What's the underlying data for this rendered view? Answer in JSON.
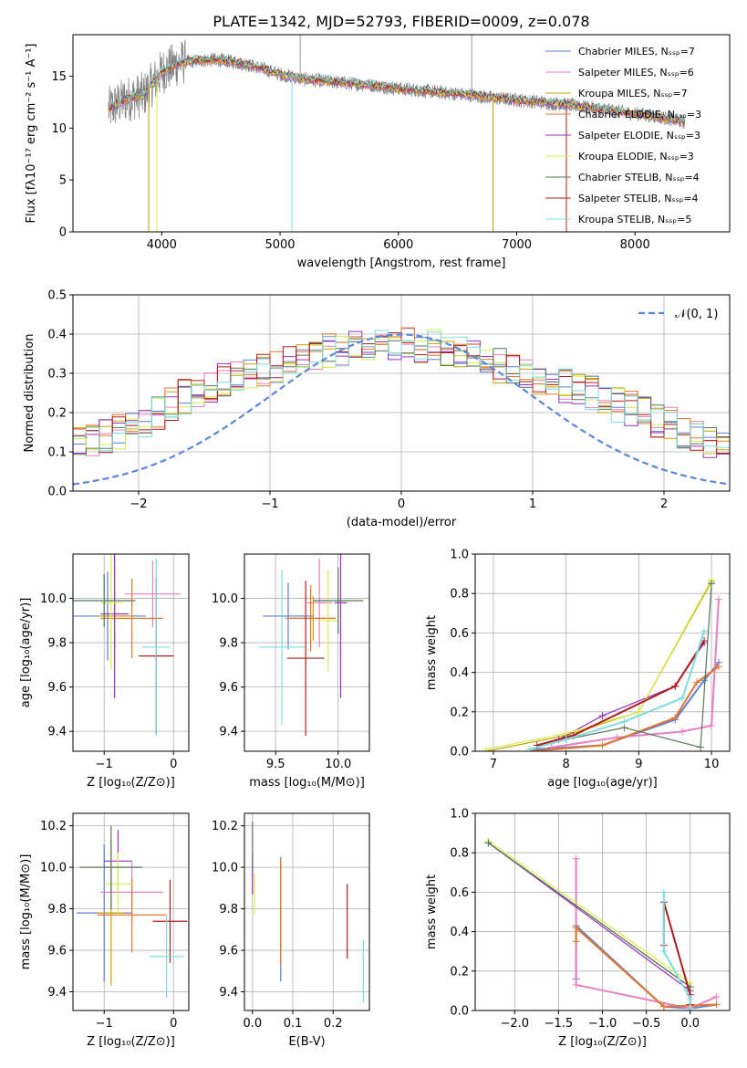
{
  "figure_title": "PLATE=1342, MJD=52793, FIBERID=0009, z=0.078",
  "series_colors": {
    "chabrier_miles": "#5b7fd6",
    "salpeter_miles": "#e87fbf",
    "kroupa_miles": "#c9a200",
    "chabrier_elodie": "#e5762b",
    "salpeter_elodie": "#9a2ec4",
    "kroupa_elodie": "#d4ef4a",
    "chabrier_stelib": "#55775a",
    "salpeter_stelib": "#b01c1c",
    "kroupa_stelib": "#7fdcdc",
    "data": "#808080",
    "normal": "#5a87d8"
  },
  "chart_data": [
    {
      "id": "spectrum",
      "type": "line",
      "xlabel": "wavelength [Angstrom, rest frame]",
      "ylabel": "Flux [fλ10⁻¹⁷ erg cm⁻² s⁻¹ A⁻¹]",
      "xlim": [
        3250,
        8800
      ],
      "ylim": [
        0,
        19
      ],
      "xticks": [
        4000,
        5000,
        6000,
        7000,
        8000
      ],
      "yticks": [
        0,
        5,
        10,
        15
      ],
      "grid": false,
      "legend_position": "top-right",
      "legend": [
        {
          "key": "chabrier_miles",
          "label": "Chabrier MILES, Nₛₛₚ=7"
        },
        {
          "key": "salpeter_miles",
          "label": "Salpeter MILES, Nₛₛₚ=6"
        },
        {
          "key": "kroupa_miles",
          "label": "Kroupa MILES, Nₛₛₚ=7"
        },
        {
          "key": "chabrier_elodie",
          "label": "Chabrier ELODIE, Nₛₛₚ=3"
        },
        {
          "key": "salpeter_elodie",
          "label": "Salpeter ELODIE, Nₛₛₚ=3"
        },
        {
          "key": "kroupa_elodie",
          "label": "Kroupa ELODIE, Nₛₛₚ=3"
        },
        {
          "key": "chabrier_stelib",
          "label": "Chabrier STELIB, Nₛₛₚ=4"
        },
        {
          "key": "salpeter_stelib",
          "label": "Salpeter STELIB, Nₛₛₚ=4"
        },
        {
          "key": "kroupa_stelib",
          "label": "Kroupa STELIB, Nₛₛₚ=5"
        }
      ],
      "continuum": {
        "x": [
          3550,
          3700,
          3850,
          4000,
          4150,
          4300,
          4450,
          4600,
          4800,
          5000,
          5200,
          5400,
          5600,
          5800,
          6000,
          6200,
          6400,
          6600,
          6800,
          7000,
          7200,
          7400,
          7600,
          7800,
          8000,
          8200,
          8400
        ],
        "y": [
          11.8,
          12.8,
          13.2,
          15.4,
          16.3,
          16.5,
          16.6,
          16.4,
          15.9,
          15.2,
          14.7,
          14.5,
          14.3,
          14.1,
          13.8,
          13.6,
          13.4,
          13.2,
          12.9,
          12.7,
          12.5,
          12.3,
          12.0,
          11.7,
          11.4,
          11.1,
          10.6
        ]
      }
    },
    {
      "id": "residuals",
      "type": "histogram",
      "xlabel": "(data-model)/error",
      "ylabel": "Normed distribution",
      "xlim": [
        -2.5,
        2.5
      ],
      "ylim": [
        0,
        0.5
      ],
      "xticks": [
        -2,
        -1,
        0,
        1,
        2
      ],
      "yticks": [
        0.0,
        0.1,
        0.2,
        0.3,
        0.4,
        0.5
      ],
      "grid": true,
      "legend_position": "top-right",
      "legend": [
        {
          "key": "normal",
          "label": "𝒩(0, 1)"
        }
      ],
      "bin_width": 0.1,
      "base": [
        0.03,
        0.03,
        0.04,
        0.05,
        0.06,
        0.07,
        0.08,
        0.09,
        0.1,
        0.11,
        0.12,
        0.13,
        0.14,
        0.15,
        0.16,
        0.18,
        0.2,
        0.22,
        0.24,
        0.25,
        0.27,
        0.28,
        0.29,
        0.3,
        0.31,
        0.32,
        0.33,
        0.34,
        0.35,
        0.36,
        0.36,
        0.37,
        0.38,
        0.38,
        0.38,
        0.38,
        0.37,
        0.37,
        0.36,
        0.35,
        0.34,
        0.33,
        0.32,
        0.31,
        0.3,
        0.29,
        0.28,
        0.27,
        0.26,
        0.25,
        0.24,
        0.22,
        0.21,
        0.2,
        0.18,
        0.17,
        0.15,
        0.14,
        0.13,
        0.12,
        0.11,
        0.1,
        0.09,
        0.08,
        0.08,
        0.07,
        0.06,
        0.05,
        0.05,
        0.04
      ]
    },
    {
      "id": "age_vs_Z",
      "type": "errorbar",
      "xlabel": "Z [log₁₀(Z/Z⊙)]",
      "ylabel": "age  [log₁₀(age/yr)]",
      "xlim": [
        -1.45,
        0.22
      ],
      "ylim": [
        9.31,
        10.2
      ],
      "xticks": [
        -1,
        0
      ],
      "yticks": [
        9.4,
        9.6,
        9.8,
        10.0
      ],
      "grid": true,
      "points": [
        {
          "s": "chabrier_miles",
          "x": -0.95,
          "xerr": 0.55,
          "y": 9.92,
          "yerr": 0.2
        },
        {
          "s": "salpeter_miles",
          "x": -0.3,
          "xerr": 0.4,
          "y": 10.02,
          "yerr": 0.15
        },
        {
          "s": "kroupa_miles",
          "x": -0.85,
          "xerr": 0.25,
          "y": 9.92,
          "yerr": 0.22
        },
        {
          "s": "chabrier_elodie",
          "x": -0.6,
          "xerr": 0.45,
          "y": 9.91,
          "yerr": 0.18
        },
        {
          "s": "salpeter_elodie",
          "x": -0.85,
          "xerr": 0.2,
          "y": 9.93,
          "yerr": 0.38
        },
        {
          "s": "kroupa_elodie",
          "x": -0.9,
          "xerr": 0.15,
          "y": 9.98,
          "yerr": 0.3
        },
        {
          "s": "chabrier_stelib",
          "x": -1.0,
          "xerr": 0.45,
          "y": 9.99,
          "yerr": 0.12
        },
        {
          "s": "salpeter_stelib",
          "x": -0.25,
          "xerr": 0.25,
          "y": 9.74,
          "yerr": 0.35
        },
        {
          "s": "kroupa_stelib",
          "x": -0.25,
          "xerr": 0.2,
          "y": 9.78,
          "yerr": 0.4
        }
      ]
    },
    {
      "id": "age_vs_mass",
      "type": "errorbar",
      "xlabel": "mass [log₁₀(M/M⊙)]",
      "ylabel": "",
      "xlim": [
        9.25,
        10.25
      ],
      "ylim": [
        9.31,
        10.2
      ],
      "xticks": [
        9.5,
        10.0
      ],
      "yticks": [
        9.4,
        9.6,
        9.8,
        10.0
      ],
      "grid": true,
      "points": [
        {
          "s": "chabrier_miles",
          "x": 9.6,
          "xerr": 0.2,
          "y": 9.92,
          "yerr": 0.15
        },
        {
          "s": "salpeter_miles",
          "x": 9.85,
          "xerr": 0.1,
          "y": 9.98,
          "yerr": 0.2
        },
        {
          "s": "kroupa_miles",
          "x": 9.8,
          "xerr": 0.18,
          "y": 9.91,
          "yerr": 0.1
        },
        {
          "s": "chabrier_elodie",
          "x": 9.78,
          "xerr": 0.2,
          "y": 9.91,
          "yerr": 0.15
        },
        {
          "s": "salpeter_elodie",
          "x": 10.02,
          "xerr": 0.05,
          "y": 9.98,
          "yerr": 0.43
        },
        {
          "s": "kroupa_elodie",
          "x": 9.92,
          "xerr": 0.08,
          "y": 9.9,
          "yerr": 0.23
        },
        {
          "s": "chabrier_stelib",
          "x": 10.0,
          "xerr": 0.2,
          "y": 9.99,
          "yerr": 0.15
        },
        {
          "s": "salpeter_stelib",
          "x": 9.74,
          "xerr": 0.15,
          "y": 9.73,
          "yerr": 0.35
        },
        {
          "s": "kroupa_stelib",
          "x": 9.55,
          "xerr": 0.18,
          "y": 9.78,
          "yerr": 0.35
        }
      ]
    },
    {
      "id": "mass_weight_vs_age",
      "type": "line",
      "xlabel": "age  [log₁₀(age/yr)]",
      "ylabel": "mass weight",
      "xlim": [
        6.75,
        10.25
      ],
      "ylim": [
        0,
        1.0
      ],
      "xticks": [
        7,
        8,
        9,
        10
      ],
      "yticks": [
        0.0,
        0.2,
        0.4,
        0.6,
        0.8,
        1.0
      ],
      "grid": true,
      "series": [
        {
          "s": "chabrier_miles",
          "x": [
            7.6,
            8.5,
            9.5,
            9.9,
            10.1
          ],
          "y": [
            0.01,
            0.03,
            0.16,
            0.36,
            0.45
          ]
        },
        {
          "s": "salpeter_miles",
          "x": [
            7.8,
            8.7,
            9.6,
            10.0,
            10.1
          ],
          "y": [
            0.02,
            0.07,
            0.1,
            0.13,
            0.77
          ]
        },
        {
          "s": "kroupa_miles",
          "x": [
            6.9,
            8.0,
            9.0,
            10.0
          ],
          "y": [
            0.0,
            0.08,
            0.2,
            0.86
          ]
        },
        {
          "s": "chabrier_elodie",
          "x": [
            7.5,
            8.5,
            9.5,
            9.8,
            10.1
          ],
          "y": [
            0.0,
            0.03,
            0.17,
            0.35,
            0.43
          ]
        },
        {
          "s": "salpeter_elodie",
          "x": [
            7.9,
            8.5,
            9.5,
            9.9
          ],
          "y": [
            0.06,
            0.18,
            0.33,
            0.55
          ]
        },
        {
          "s": "kroupa_elodie",
          "x": [
            6.9,
            8.0,
            9.0,
            10.0
          ],
          "y": [
            0.01,
            0.09,
            0.2,
            0.87
          ]
        },
        {
          "s": "chabrier_stelib",
          "x": [
            8.0,
            8.8,
            9.85,
            10.0
          ],
          "y": [
            0.06,
            0.12,
            0.02,
            0.85
          ]
        },
        {
          "s": "salpeter_stelib",
          "x": [
            7.6,
            8.1,
            9.5,
            9.9
          ],
          "y": [
            0.03,
            0.08,
            0.33,
            0.56
          ]
        },
        {
          "s": "kroupa_stelib",
          "x": [
            7.5,
            8.0,
            8.8,
            9.6,
            9.9
          ],
          "y": [
            0.01,
            0.06,
            0.15,
            0.27,
            0.61
          ]
        }
      ]
    },
    {
      "id": "mass_vs_Z",
      "type": "errorbar",
      "xlabel": "Z [log₁₀(Z/Z⊙)]",
      "ylabel": "mass [log₁₀(M/M⊙)]",
      "xlim": [
        -1.45,
        0.22
      ],
      "ylim": [
        9.31,
        10.26
      ],
      "xticks": [
        -1,
        0
      ],
      "yticks": [
        9.4,
        9.6,
        9.8,
        10.0,
        10.2
      ],
      "grid": true,
      "points": [
        {
          "s": "chabrier_miles",
          "x": -1.0,
          "xerr": 0.4,
          "y": 9.78,
          "yerr": 0.33
        },
        {
          "s": "salpeter_miles",
          "x": -0.6,
          "xerr": 0.45,
          "y": 9.88,
          "yerr": 0.15
        },
        {
          "s": "kroupa_miles",
          "x": -0.9,
          "xerr": 0.2,
          "y": 9.78,
          "yerr": 0.35
        },
        {
          "s": "chabrier_elodie",
          "x": -0.6,
          "xerr": 0.5,
          "y": 9.77,
          "yerr": 0.18
        },
        {
          "s": "salpeter_elodie",
          "x": -0.8,
          "xerr": 0.2,
          "y": 10.03,
          "yerr": 0.15
        },
        {
          "s": "kroupa_elodie",
          "x": -0.8,
          "xerr": 0.2,
          "y": 9.92,
          "yerr": 0.15
        },
        {
          "s": "chabrier_stelib",
          "x": -0.9,
          "xerr": 0.45,
          "y": 10.0,
          "yerr": 0.2
        },
        {
          "s": "salpeter_stelib",
          "x": -0.05,
          "xerr": 0.25,
          "y": 9.74,
          "yerr": 0.2
        },
        {
          "s": "kroupa_stelib",
          "x": -0.1,
          "xerr": 0.25,
          "y": 9.57,
          "yerr": 0.2
        }
      ]
    },
    {
      "id": "mass_vs_ebv",
      "type": "errorbar",
      "xlabel": "E(B-V)",
      "ylabel": "",
      "xlim": [
        -0.02,
        0.29
      ],
      "ylim": [
        9.31,
        10.26
      ],
      "xticks": [
        0.0,
        0.1,
        0.2
      ],
      "yticks": [
        9.4,
        9.6,
        9.8,
        10.0,
        10.2
      ],
      "grid": true,
      "points": [
        {
          "s": "chabrier_miles",
          "x": 0.07,
          "xerr": 0.0,
          "y": 9.75,
          "yerr": 0.3
        },
        {
          "s": "salpeter_miles",
          "x": 0.0,
          "xerr": 0.0,
          "y": 9.97,
          "yerr": 0.1
        },
        {
          "s": "kroupa_miles",
          "x": 0.07,
          "xerr": 0.0,
          "y": 9.82,
          "yerr": 0.22
        },
        {
          "s": "chabrier_elodie",
          "x": 0.07,
          "xerr": 0.0,
          "y": 9.78,
          "yerr": 0.25
        },
        {
          "s": "salpeter_elodie",
          "x": 0.0,
          "xerr": 0.0,
          "y": 9.97,
          "yerr": 0.1
        },
        {
          "s": "kroupa_elodie",
          "x": 0.005,
          "xerr": 0.0,
          "y": 9.87,
          "yerr": 0.1
        },
        {
          "s": "chabrier_stelib",
          "x": 0.0,
          "xerr": 0.0,
          "y": 10.1,
          "yerr": 0.12
        },
        {
          "s": "salpeter_stelib",
          "x": 0.235,
          "xerr": 0.0,
          "y": 9.74,
          "yerr": 0.18
        },
        {
          "s": "kroupa_stelib",
          "x": 0.275,
          "xerr": 0.0,
          "y": 9.5,
          "yerr": 0.15
        }
      ]
    },
    {
      "id": "mass_weight_vs_Z",
      "type": "line",
      "xlabel": "Z [log₁₀(Z/Z⊙)]",
      "ylabel": "mass weight",
      "xlim": [
        -2.45,
        0.45
      ],
      "ylim": [
        0,
        1.0
      ],
      "xticks": [
        -2.0,
        -1.5,
        -1.0,
        -0.5,
        0.0
      ],
      "yticks": [
        0.0,
        0.2,
        0.4,
        0.6,
        0.8,
        1.0
      ],
      "grid": true,
      "series": [
        {
          "s": "chabrier_miles",
          "x": [
            -1.3,
            -1.3,
            -0.3,
            0.0,
            0.3
          ],
          "y": [
            0.16,
            0.43,
            0.02,
            0.01,
            0.03
          ]
        },
        {
          "s": "salpeter_miles",
          "x": [
            -1.3,
            -1.3,
            0.0,
            0.3
          ],
          "y": [
            0.77,
            0.13,
            0.01,
            0.07
          ]
        },
        {
          "s": "kroupa_miles",
          "x": [
            -2.3,
            0.0
          ],
          "y": [
            0.85,
            0.12
          ]
        },
        {
          "s": "chabrier_elodie",
          "x": [
            -1.3,
            -1.3,
            -0.3,
            0.3
          ],
          "y": [
            0.35,
            0.42,
            0.02,
            0.03
          ]
        },
        {
          "s": "salpeter_elodie",
          "x": [
            -2.3,
            0.0
          ],
          "y": [
            0.85,
            0.1
          ]
        },
        {
          "s": "kroupa_elodie",
          "x": [
            -2.3,
            0.0
          ],
          "y": [
            0.86,
            0.14
          ]
        },
        {
          "s": "chabrier_stelib",
          "x": [
            -2.3,
            0.0,
            0.0
          ],
          "y": [
            0.85,
            0.12,
            0.03
          ]
        },
        {
          "s": "salpeter_stelib",
          "x": [
            -0.3,
            -0.3,
            0.0,
            0.0
          ],
          "y": [
            0.33,
            0.55,
            0.08,
            0.03
          ]
        },
        {
          "s": "kroupa_stelib",
          "x": [
            -0.3,
            -0.3,
            0.0,
            0.0
          ],
          "y": [
            0.6,
            0.3,
            0.06,
            0.01
          ]
        }
      ]
    }
  ]
}
